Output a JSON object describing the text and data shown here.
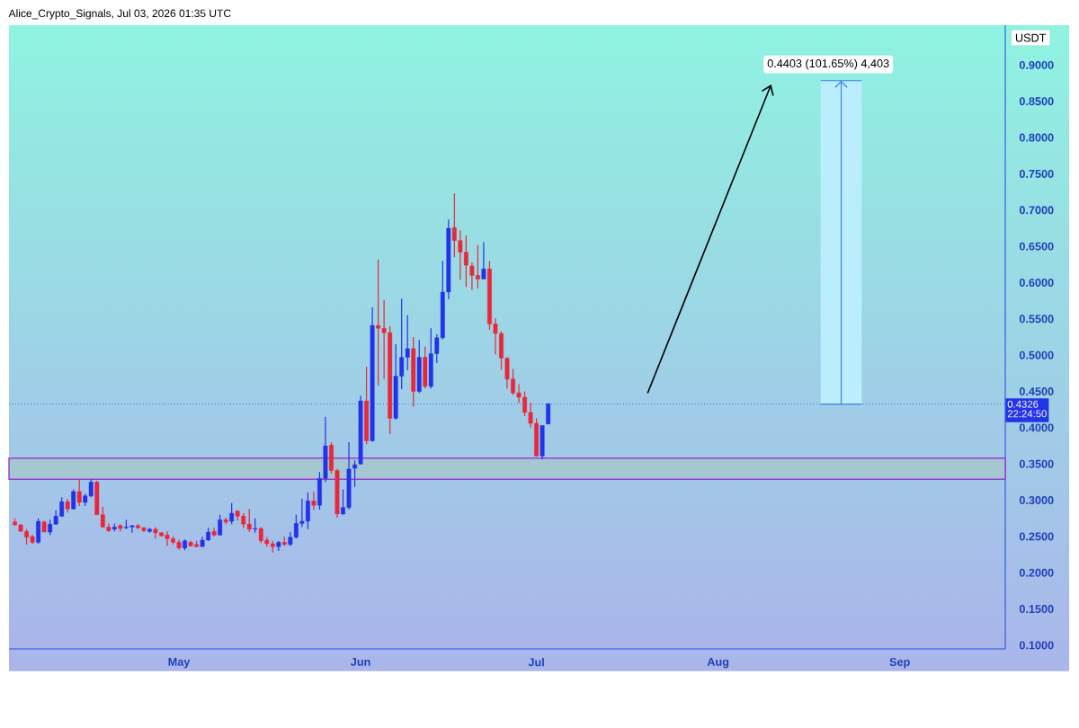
{
  "chart_data": {
    "type": "candlestick",
    "title": "Alice_Crypto_Signals, Jul 03, 2026 01:35 UTC",
    "ylabel": "USDT",
    "x": [
      "2026-04-03",
      "2026-04-04",
      "2026-04-05",
      "2026-04-06",
      "2026-04-07",
      "2026-04-08",
      "2026-04-09",
      "2026-04-10",
      "2026-04-11",
      "2026-04-12",
      "2026-04-13",
      "2026-04-14",
      "2026-04-15",
      "2026-04-16",
      "2026-04-17",
      "2026-04-18",
      "2026-04-19",
      "2026-04-20",
      "2026-04-21",
      "2026-04-22",
      "2026-04-23",
      "2026-04-24",
      "2026-04-25",
      "2026-04-26",
      "2026-04-27",
      "2026-04-28",
      "2026-04-29",
      "2026-04-30",
      "2026-05-01",
      "2026-05-02",
      "2026-05-03",
      "2026-05-04",
      "2026-05-05",
      "2026-05-06",
      "2026-05-07",
      "2026-05-08",
      "2026-05-09",
      "2026-05-10",
      "2026-05-11",
      "2026-05-12",
      "2026-05-13",
      "2026-05-14",
      "2026-05-15",
      "2026-05-16",
      "2026-05-17",
      "2026-05-18",
      "2026-05-19",
      "2026-05-20",
      "2026-05-21",
      "2026-05-22",
      "2026-05-23",
      "2026-05-24",
      "2026-05-25",
      "2026-05-26",
      "2026-05-27",
      "2026-05-28",
      "2026-05-29",
      "2026-05-30",
      "2026-05-31",
      "2026-06-01",
      "2026-06-02",
      "2026-06-03",
      "2026-06-04",
      "2026-06-05",
      "2026-06-06",
      "2026-06-07",
      "2026-06-08",
      "2026-06-09",
      "2026-06-10",
      "2026-06-11",
      "2026-06-12",
      "2026-06-13",
      "2026-06-14",
      "2026-06-15",
      "2026-06-16",
      "2026-06-17",
      "2026-06-18",
      "2026-06-19",
      "2026-06-20",
      "2026-06-21",
      "2026-06-22",
      "2026-06-23",
      "2026-06-24",
      "2026-06-25",
      "2026-06-26",
      "2026-06-27",
      "2026-06-28",
      "2026-06-29",
      "2026-06-30",
      "2026-07-01",
      "2026-07-02",
      "2026-07-03"
    ],
    "ohlc": [
      [
        0.27,
        0.275,
        0.265,
        0.266
      ],
      [
        0.266,
        0.267,
        0.257,
        0.257
      ],
      [
        0.257,
        0.26,
        0.239,
        0.249
      ],
      [
        0.25,
        0.252,
        0.24,
        0.242
      ],
      [
        0.242,
        0.275,
        0.24,
        0.271
      ],
      [
        0.27,
        0.272,
        0.256,
        0.256
      ],
      [
        0.256,
        0.273,
        0.252,
        0.267
      ],
      [
        0.267,
        0.286,
        0.266,
        0.278
      ],
      [
        0.278,
        0.304,
        0.277,
        0.298
      ],
      [
        0.298,
        0.302,
        0.283,
        0.288
      ],
      [
        0.288,
        0.315,
        0.287,
        0.312
      ],
      [
        0.312,
        0.329,
        0.292,
        0.297
      ],
      [
        0.297,
        0.309,
        0.292,
        0.306
      ],
      [
        0.306,
        0.329,
        0.304,
        0.325
      ],
      [
        0.325,
        0.327,
        0.28,
        0.28
      ],
      [
        0.28,
        0.291,
        0.262,
        0.263
      ],
      [
        0.263,
        0.268,
        0.256,
        0.258
      ],
      [
        0.26,
        0.268,
        0.257,
        0.263
      ],
      [
        0.265,
        0.267,
        0.257,
        0.261
      ],
      [
        0.262,
        0.273,
        0.26,
        0.263
      ],
      [
        0.263,
        0.265,
        0.255,
        0.265
      ],
      [
        0.265,
        0.267,
        0.26,
        0.262
      ],
      [
        0.262,
        0.263,
        0.256,
        0.258
      ],
      [
        0.257,
        0.262,
        0.255,
        0.26
      ],
      [
        0.26,
        0.263,
        0.247,
        0.255
      ],
      [
        0.255,
        0.256,
        0.25,
        0.251
      ],
      [
        0.252,
        0.257,
        0.237,
        0.247
      ],
      [
        0.247,
        0.25,
        0.239,
        0.242
      ],
      [
        0.242,
        0.246,
        0.232,
        0.234
      ],
      [
        0.234,
        0.246,
        0.231,
        0.244
      ],
      [
        0.242,
        0.244,
        0.236,
        0.237
      ],
      [
        0.239,
        0.244,
        0.235,
        0.236
      ],
      [
        0.236,
        0.25,
        0.236,
        0.245
      ],
      [
        0.245,
        0.262,
        0.244,
        0.256
      ],
      [
        0.257,
        0.262,
        0.25,
        0.252
      ],
      [
        0.252,
        0.28,
        0.251,
        0.273
      ],
      [
        0.273,
        0.276,
        0.267,
        0.27
      ],
      [
        0.271,
        0.296,
        0.267,
        0.282
      ],
      [
        0.285,
        0.286,
        0.272,
        0.278
      ],
      [
        0.278,
        0.282,
        0.262,
        0.267
      ],
      [
        0.267,
        0.288,
        0.256,
        0.26
      ],
      [
        0.26,
        0.275,
        0.255,
        0.261
      ],
      [
        0.261,
        0.263,
        0.241,
        0.244
      ],
      [
        0.245,
        0.249,
        0.236,
        0.24
      ],
      [
        0.24,
        0.244,
        0.228,
        0.236
      ],
      [
        0.236,
        0.244,
        0.23,
        0.242
      ],
      [
        0.242,
        0.25,
        0.237,
        0.239
      ],
      [
        0.239,
        0.256,
        0.237,
        0.249
      ],
      [
        0.249,
        0.28,
        0.247,
        0.268
      ],
      [
        0.268,
        0.302,
        0.263,
        0.271
      ],
      [
        0.271,
        0.311,
        0.26,
        0.299
      ],
      [
        0.299,
        0.312,
        0.286,
        0.293
      ],
      [
        0.293,
        0.339,
        0.287,
        0.33
      ],
      [
        0.33,
        0.415,
        0.325,
        0.375
      ],
      [
        0.376,
        0.38,
        0.337,
        0.341
      ],
      [
        0.341,
        0.343,
        0.276,
        0.281
      ],
      [
        0.281,
        0.315,
        0.28,
        0.29
      ],
      [
        0.29,
        0.38,
        0.287,
        0.343
      ],
      [
        0.344,
        0.355,
        0.318,
        0.349
      ],
      [
        0.35,
        0.444,
        0.349,
        0.437
      ],
      [
        0.437,
        0.484,
        0.377,
        0.382
      ],
      [
        0.382,
        0.566,
        0.381,
        0.541
      ],
      [
        0.541,
        0.632,
        0.458,
        0.537
      ],
      [
        0.537,
        0.576,
        0.467,
        0.531
      ],
      [
        0.531,
        0.54,
        0.391,
        0.413
      ],
      [
        0.413,
        0.515,
        0.411,
        0.471
      ],
      [
        0.471,
        0.578,
        0.453,
        0.497
      ],
      [
        0.497,
        0.555,
        0.479,
        0.509
      ],
      [
        0.509,
        0.525,
        0.429,
        0.45
      ],
      [
        0.45,
        0.521,
        0.448,
        0.497
      ],
      [
        0.497,
        0.512,
        0.454,
        0.457
      ],
      [
        0.457,
        0.537,
        0.454,
        0.502
      ],
      [
        0.502,
        0.529,
        0.489,
        0.524
      ],
      [
        0.524,
        0.63,
        0.522,
        0.587
      ],
      [
        0.587,
        0.687,
        0.577,
        0.675
      ],
      [
        0.676,
        0.723,
        0.635,
        0.658
      ],
      [
        0.658,
        0.672,
        0.604,
        0.642
      ],
      [
        0.642,
        0.665,
        0.594,
        0.624
      ],
      [
        0.623,
        0.628,
        0.59,
        0.61
      ],
      [
        0.61,
        0.652,
        0.592,
        0.605
      ],
      [
        0.605,
        0.656,
        0.605,
        0.619
      ],
      [
        0.619,
        0.63,
        0.535,
        0.543
      ],
      [
        0.543,
        0.551,
        0.501,
        0.53
      ],
      [
        0.53,
        0.533,
        0.48,
        0.496
      ],
      [
        0.496,
        0.497,
        0.454,
        0.467
      ],
      [
        0.467,
        0.481,
        0.445,
        0.448
      ],
      [
        0.448,
        0.46,
        0.434,
        0.442
      ],
      [
        0.442,
        0.45,
        0.416,
        0.421
      ],
      [
        0.421,
        0.434,
        0.4,
        0.406
      ],
      [
        0.406,
        0.413,
        0.36,
        0.361
      ],
      [
        0.361,
        0.403,
        0.356,
        0.403
      ],
      [
        0.405,
        0.434,
        0.405,
        0.433
      ]
    ],
    "colors": [
      "#e8283a",
      "#e8283a",
      "#e8283a",
      "#e8283a",
      "#2233e8",
      "#e8283a",
      "#2233e8",
      "#2233e8",
      "#2233e8",
      "#e8283a",
      "#2233e8",
      "#e8283a",
      "#2233e8",
      "#2233e8",
      "#e8283a",
      "#e8283a",
      "#e8283a",
      "#2233e8",
      "#e8283a",
      "#2233e8",
      "#2233e8",
      "#e8283a",
      "#e8283a",
      "#2233e8",
      "#e8283a",
      "#e8283a",
      "#e8283a",
      "#e8283a",
      "#e8283a",
      "#2233e8",
      "#e8283a",
      "#e8283a",
      "#2233e8",
      "#2233e8",
      "#e8283a",
      "#2233e8",
      "#e8283a",
      "#2233e8",
      "#e8283a",
      "#e8283a",
      "#e8283a",
      "#2233e8",
      "#e8283a",
      "#e8283a",
      "#e8283a",
      "#2233e8",
      "#e8283a",
      "#2233e8",
      "#2233e8",
      "#2233e8",
      "#2233e8",
      "#e8283a",
      "#2233e8",
      "#2233e8",
      "#e8283a",
      "#e8283a",
      "#2233e8",
      "#2233e8",
      "#2233e8",
      "#2233e8",
      "#e8283a",
      "#2233e8",
      "#e8283a",
      "#e8283a",
      "#e8283a",
      "#2233e8",
      "#2233e8",
      "#2233e8",
      "#e8283a",
      "#2233e8",
      "#e8283a",
      "#2233e8",
      "#2233e8",
      "#2233e8",
      "#2233e8",
      "#e8283a",
      "#e8283a",
      "#e8283a",
      "#e8283a",
      "#e8283a",
      "#2233e8",
      "#e8283a",
      "#e8283a",
      "#e8283a",
      "#e8283a",
      "#e8283a",
      "#e8283a",
      "#e8283a",
      "#e8283a",
      "#e8283a",
      "#2233e8",
      "#2233e8"
    ],
    "xlim": [
      "2026-04-02",
      "2026-09-19"
    ],
    "xticks": [
      {
        "value": "2026-05-01",
        "label": "May"
      },
      {
        "value": "2026-06-01",
        "label": "Jun"
      },
      {
        "value": "2026-07-01",
        "label": "Jul"
      },
      {
        "value": "2026-08-01",
        "label": "Aug"
      },
      {
        "value": "2026-09-01",
        "label": "Sep"
      }
    ],
    "ylim": [
      0.095,
      0.955
    ],
    "yticks": [
      {
        "value": 0.1,
        "label": "0.1000"
      },
      {
        "value": 0.15,
        "label": "0.1500"
      },
      {
        "value": 0.2,
        "label": "0.2000"
      },
      {
        "value": 0.25,
        "label": "0.2500"
      },
      {
        "value": 0.3,
        "label": "0.3000"
      },
      {
        "value": 0.35,
        "label": "0.3500"
      },
      {
        "value": 0.4,
        "label": "0.4000"
      },
      {
        "value": 0.45,
        "label": "0.4500"
      },
      {
        "value": 0.5,
        "label": "0.5000"
      },
      {
        "value": 0.55,
        "label": "0.5500"
      },
      {
        "value": 0.6,
        "label": "0.6000"
      },
      {
        "value": 0.65,
        "label": "0.6500"
      },
      {
        "value": 0.7,
        "label": "0.7000"
      },
      {
        "value": 0.75,
        "label": "0.7500"
      },
      {
        "value": 0.8,
        "label": "0.8000"
      },
      {
        "value": 0.85,
        "label": "0.8500"
      },
      {
        "value": 0.9,
        "label": "0.9000"
      }
    ],
    "ref_lines": [
      {
        "axis": "y",
        "value": 0.4326,
        "label": "0.4326",
        "color": "#2233e8",
        "line_style": "dotted"
      }
    ],
    "bands": [
      {
        "axis": "y",
        "from": 0.329,
        "to": 0.358,
        "color": "#9b3fcf"
      }
    ],
    "annotations": [
      {
        "text": "0.4403 (101.65%) 4,403",
        "x": "2026-08-22",
        "y": 0.4326
      },
      "22:24:50"
    ]
  }
}
